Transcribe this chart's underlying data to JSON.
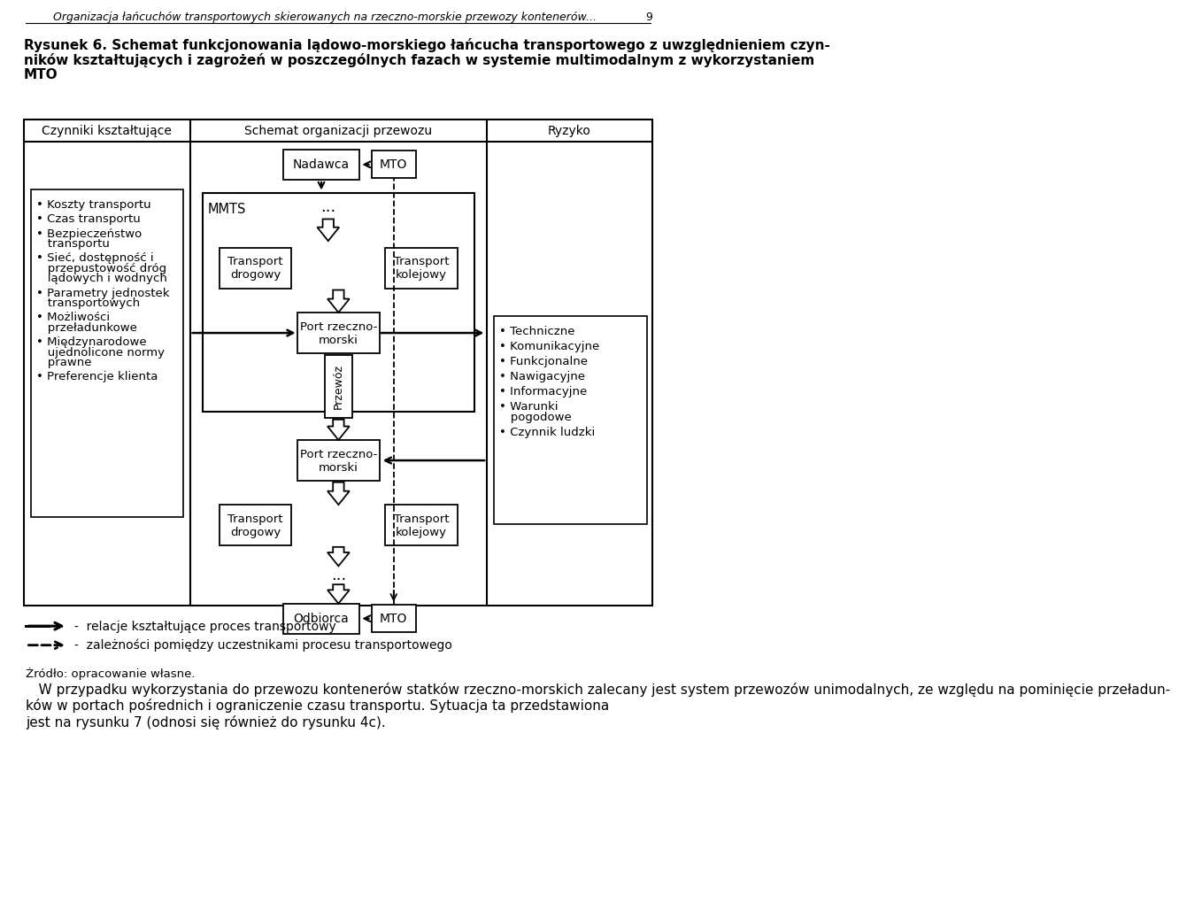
{
  "header_italic": "Organizacja łańcuchów transportowych skierowanych na rzeczno-morskie przewozy kontenerów...",
  "header_page": "9",
  "title_line1": "Rysunek 6. Schemat funkcjonowania lądowo-morskiego łańcucha transportowego z uwzględnieniem czyn-",
  "title_line2": "ników kształtujących i zagrożeń w poszczególnych fazach w systemie multimodalnym z wykorzystaniem",
  "title_line3": "MTO",
  "col1_header": "Czynniki kształtujące",
  "col2_header": "Schemat organizacji przewozu",
  "col3_header": "Ryzyko",
  "left_box_items": [
    "Koszty transportu",
    "Czas transportu",
    "Bezpieczeństwo\ntransportu",
    "Sieć, dostępność i\nprzepustowość dróg\nlądowych i wodnych",
    "Parametry jednostek\ntransportowych",
    "Możliwości\nprzeładunkowe",
    "Międzynarodowe\nujednolicone normy\nprawne",
    "Preferencje klienta"
  ],
  "right_box_items": [
    "Techniczne",
    "Komunikacyjne",
    "Funkcjonalne",
    "Nawigacyjne",
    "Informacyjne",
    "Warunki\npogodowe",
    "Czynnik ludzki"
  ],
  "legend_solid": "relacje kształtujące proces transportowy",
  "legend_dashed": "zależności pomiędzy uczestnikami procesu transportowego",
  "source": "Żródło: opracowanie własne.",
  "bottom_para": "   W przypadku wykorzystania do przewozu kontenerów statków rzeczno-morskich zalecany jest system przewozów unimodalnych, ze względu na pominięcie przeładun-\nków w portach pośrednich i ograniczenie czasu transportu. Sytuacja ta przedstawiona\njest na rysunku 7 (odnosi się również do rysunku 4c).",
  "bg_color": "#ffffff"
}
